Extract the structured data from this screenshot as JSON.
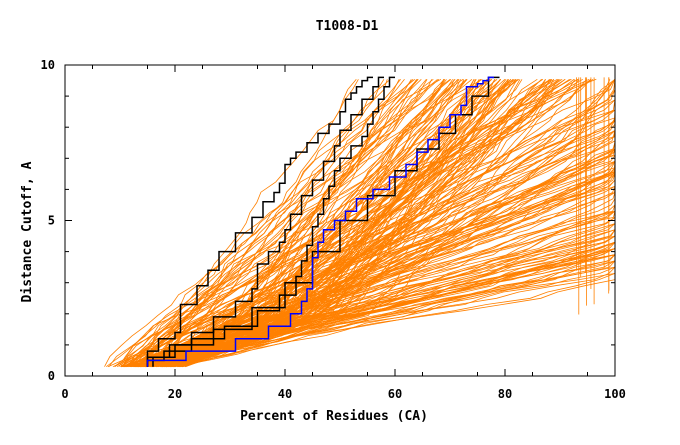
{
  "chart_data": {
    "type": "line",
    "title": "T1008-D1",
    "xlabel": "Percent of Residues (CA)",
    "ylabel": "Distance Cutoff, A",
    "xlim": [
      0,
      100
    ],
    "ylim": [
      0,
      10
    ],
    "x_ticks": [
      "0",
      "20",
      "40",
      "60",
      "80",
      "100"
    ],
    "y_ticks": [
      "0",
      "5",
      "10"
    ],
    "grid": false,
    "legend": "none",
    "colors": {
      "background_models": "#ff8000",
      "highlight_black": "#000000",
      "highlight_blue": "#0000ff"
    },
    "highlight_series": [
      {
        "color": "#000000",
        "x": [
          15,
          17,
          20,
          21,
          21,
          24,
          26,
          28,
          31,
          34,
          36,
          38,
          39,
          40,
          40,
          41,
          42,
          44,
          46,
          48,
          50,
          51,
          52,
          53,
          54,
          55,
          56
        ],
        "y": [
          0.3,
          0.8,
          1.2,
          1.4,
          1.9,
          2.3,
          2.9,
          3.4,
          4.0,
          4.6,
          5.1,
          5.6,
          5.9,
          6.2,
          6.6,
          6.8,
          7.0,
          7.2,
          7.5,
          7.8,
          8.1,
          8.5,
          8.9,
          9.1,
          9.3,
          9.5,
          9.6
        ]
      },
      {
        "color": "#000000",
        "x": [
          16,
          19,
          23,
          27,
          31,
          34,
          35,
          35,
          37,
          39,
          40,
          41,
          43,
          45,
          47,
          49,
          50,
          52,
          54,
          56,
          57,
          58
        ],
        "y": [
          0.3,
          0.6,
          1.0,
          1.4,
          1.9,
          2.4,
          2.8,
          3.3,
          3.6,
          4.0,
          4.3,
          4.7,
          5.2,
          5.8,
          6.3,
          6.9,
          7.4,
          7.9,
          8.4,
          8.9,
          9.3,
          9.6
        ]
      },
      {
        "color": "#000000",
        "x": [
          15,
          18,
          23,
          29,
          35,
          39,
          42,
          43,
          44,
          45,
          46,
          47,
          48,
          49,
          50,
          52,
          54,
          55,
          56,
          57,
          58,
          59,
          60
        ],
        "y": [
          0.3,
          0.5,
          0.8,
          1.2,
          1.6,
          2.1,
          2.6,
          3.2,
          3.7,
          4.2,
          4.8,
          5.2,
          5.7,
          6.1,
          6.6,
          7.0,
          7.4,
          7.7,
          8.1,
          8.5,
          8.9,
          9.3,
          9.6
        ]
      },
      {
        "color": "#000000",
        "x": [
          15,
          20,
          27,
          34,
          40,
          45,
          50,
          55,
          60,
          64,
          68,
          71,
          74,
          77,
          79
        ],
        "y": [
          0.3,
          0.6,
          1.0,
          1.5,
          2.2,
          3.0,
          4.0,
          5.0,
          5.8,
          6.6,
          7.3,
          7.8,
          8.4,
          9.0,
          9.6
        ]
      },
      {
        "color": "#0000ff",
        "x": [
          15,
          22,
          31,
          37,
          41,
          43,
          44,
          45,
          45,
          46,
          47,
          49,
          51,
          53,
          56,
          59,
          62,
          64,
          66,
          68,
          70,
          72,
          73,
          73,
          75,
          76,
          77,
          78
        ],
        "y": [
          0.3,
          0.5,
          0.8,
          1.2,
          1.6,
          2.0,
          2.4,
          2.8,
          3.3,
          3.8,
          4.3,
          4.7,
          5.0,
          5.3,
          5.7,
          6.0,
          6.4,
          6.8,
          7.2,
          7.6,
          8.0,
          8.4,
          8.7,
          9.1,
          9.3,
          9.4,
          9.5,
          9.6
        ]
      }
    ]
  }
}
